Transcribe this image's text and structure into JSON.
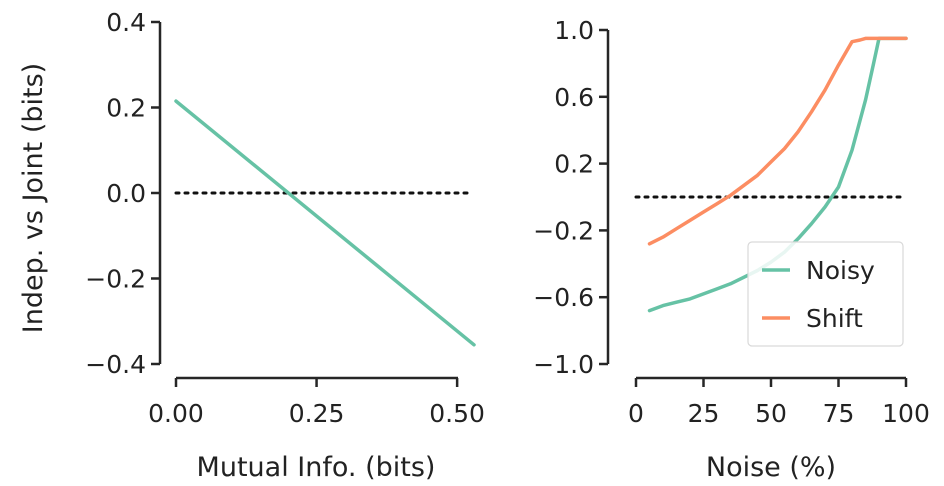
{
  "chart_data": [
    {
      "type": "line",
      "xlabel": "Mutual Info. (bits)",
      "ylabel": "Indep. vs Joint (bits)",
      "xlim": [
        0,
        0.53
      ],
      "ylim": [
        -0.4,
        0.4
      ],
      "xticks": [
        0.0,
        0.25,
        0.5
      ],
      "xtick_labels": [
        "0.00",
        "0.25",
        "0.50"
      ],
      "yticks": [
        -0.4,
        -0.2,
        0.0,
        0.2,
        0.4
      ],
      "ytick_labels": [
        "−0.4",
        "−0.2",
        "0.0",
        "0.2",
        "0.4"
      ],
      "reference_line": {
        "y": 0,
        "style": "dotted"
      },
      "grid": false,
      "series": [
        {
          "color": "#66c2a5",
          "x": [
            0.0,
            0.53
          ],
          "y": [
            0.215,
            -0.355
          ]
        }
      ]
    },
    {
      "type": "line",
      "xlabel": "Noise (%)",
      "ylabel": "",
      "xlim": [
        0,
        100
      ],
      "ylim": [
        -1.0,
        1.0
      ],
      "xticks": [
        0,
        25,
        50,
        75,
        100
      ],
      "xtick_labels": [
        "0",
        "25",
        "50",
        "75",
        "100"
      ],
      "yticks": [
        -1.0,
        -0.6,
        -0.2,
        0.2,
        0.6,
        1.0
      ],
      "ytick_labels": [
        "−1.0",
        "−0.6",
        "−0.2",
        "0.2",
        "0.6",
        "1.0"
      ],
      "reference_line": {
        "y": 0,
        "style": "dotted"
      },
      "grid": false,
      "legend": {
        "position": "lower-right"
      },
      "series": [
        {
          "name": "Noisy",
          "color": "#66c2a5",
          "x": [
            5,
            10,
            15,
            20,
            25,
            30,
            35,
            40,
            45,
            50,
            55,
            60,
            65,
            70,
            75,
            80,
            85,
            88,
            90,
            95,
            100
          ],
          "y": [
            -0.68,
            -0.65,
            -0.63,
            -0.61,
            -0.58,
            -0.55,
            -0.52,
            -0.48,
            -0.44,
            -0.39,
            -0.33,
            -0.25,
            -0.16,
            -0.06,
            0.06,
            0.28,
            0.58,
            0.8,
            0.95,
            0.95,
            0.95
          ]
        },
        {
          "name": "Shift",
          "color": "#fc8d62",
          "x": [
            5,
            10,
            15,
            20,
            25,
            30,
            35,
            40,
            45,
            50,
            55,
            60,
            65,
            70,
            75,
            80,
            83,
            85,
            90,
            95,
            100
          ],
          "y": [
            -0.28,
            -0.24,
            -0.19,
            -0.14,
            -0.09,
            -0.04,
            0.01,
            0.07,
            0.13,
            0.21,
            0.29,
            0.39,
            0.51,
            0.64,
            0.79,
            0.93,
            0.94,
            0.95,
            0.95,
            0.95,
            0.95
          ]
        }
      ]
    }
  ]
}
